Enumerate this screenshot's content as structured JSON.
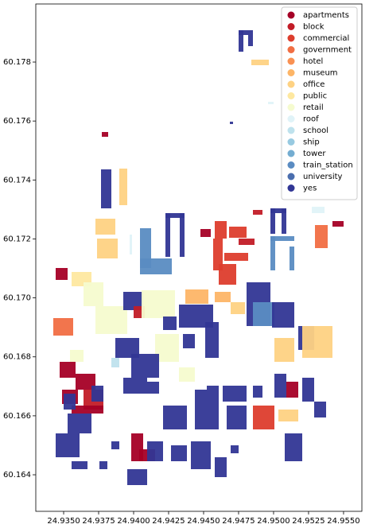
{
  "chart_data": {
    "type": "map",
    "categories": [
      "apartments",
      "block",
      "commercial",
      "government",
      "hotel",
      "museum",
      "office",
      "public",
      "retail",
      "roof",
      "school",
      "ship",
      "tower",
      "train_station",
      "university",
      "yes"
    ],
    "colors": [
      "#a50026",
      "#c21c27",
      "#dd3d2d",
      "#f16e43",
      "#f99153",
      "#fdb567",
      "#fed283",
      "#fee8a0",
      "#f5fbcf",
      "#e0f3f8",
      "#bfe2ed",
      "#98cae1",
      "#74add1",
      "#5a8cc2",
      "#4a6eae",
      "#313695"
    ],
    "xlim": [
      24.93301,
      24.95631
    ],
    "ylim": [
      60.16276,
      60.17997
    ],
    "xticks": [
      {
        "value": 24.935,
        "label": "24.9350"
      },
      {
        "value": 24.9375,
        "label": "24.9375"
      },
      {
        "value": 24.94,
        "label": "24.9400"
      },
      {
        "value": 24.9425,
        "label": "24.9425"
      },
      {
        "value": 24.945,
        "label": "24.9450"
      },
      {
        "value": 24.9475,
        "label": "24.9475"
      },
      {
        "value": 24.95,
        "label": "24.9500"
      },
      {
        "value": 24.9525,
        "label": "24.9525"
      },
      {
        "value": 24.955,
        "label": "24.9550"
      }
    ],
    "yticks": [
      {
        "value": 60.164,
        "label": "60.164"
      },
      {
        "value": 60.166,
        "label": "60.166"
      },
      {
        "value": 60.168,
        "label": "60.168"
      },
      {
        "value": 60.17,
        "label": "60.170"
      },
      {
        "value": 60.172,
        "label": "60.172"
      },
      {
        "value": 60.174,
        "label": "60.174"
      },
      {
        "value": 60.176,
        "label": "60.176"
      },
      {
        "value": 60.178,
        "label": "60.178"
      }
    ],
    "legend_corner": "upper right"
  }
}
